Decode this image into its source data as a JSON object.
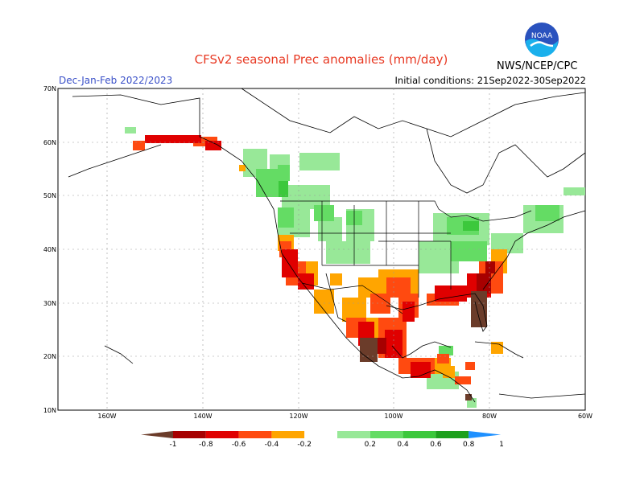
{
  "header": {
    "title": "CFSv2 seasonal Prec anomalies (mm/day)",
    "season": "Dec-Jan-Feb 2022/2023",
    "initial_conditions": "Initial conditions: 21Sep2022-30Sep2022",
    "agency": "NWS/NCEP/CPC",
    "logo_text": "NOAA"
  },
  "map": {
    "lat_labels": [
      "70N",
      "60N",
      "50N",
      "40N",
      "30N",
      "20N",
      "10N"
    ],
    "lon_labels": [
      "160W",
      "140W",
      "120W",
      "100W",
      "80W",
      "60W"
    ]
  },
  "legend": {
    "tick_labels": [
      "-1",
      "-0.8",
      "-0.6",
      "-0.4",
      "-0.2",
      "0.2",
      "0.4",
      "0.6",
      "0.8",
      "1"
    ],
    "colors": {
      "lt_-1": "#6b3c2a",
      "-1_-0.8": "#a70000",
      "-0.8_-0.6": "#e00000",
      "-0.6_-0.4": "#ff4a10",
      "-0.4_-0.2": "#ffa500",
      "-0.2_0.2": "#ffffff",
      "0.2_0.4": "#98e898",
      "0.4_0.6": "#64dc64",
      "0.6_0.8": "#3cc83c",
      "0.8_1": "#1ea01e",
      "gt_1": "#1e90ff"
    }
  }
}
